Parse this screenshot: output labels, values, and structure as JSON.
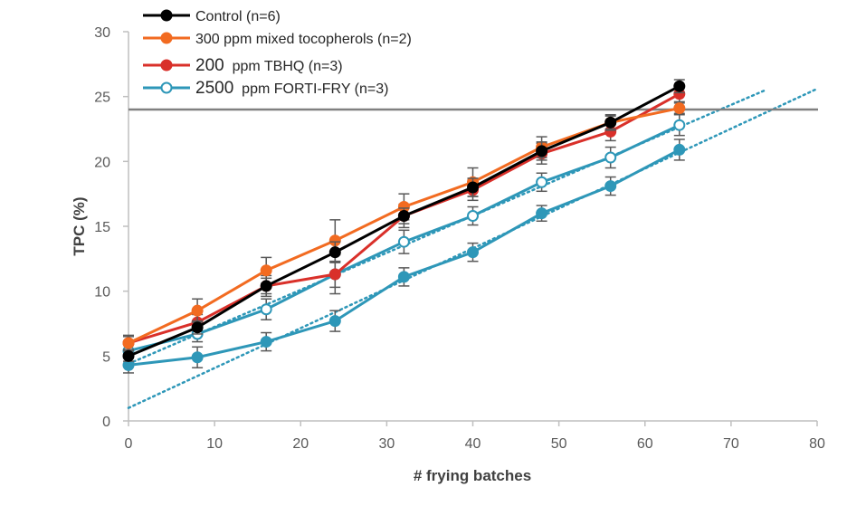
{
  "chart_data": {
    "type": "line",
    "title": "",
    "xlabel": "# frying batches",
    "ylabel": "TPC (%)",
    "xlim": [
      0,
      80
    ],
    "ylim": [
      0,
      30
    ],
    "xticks": [
      "0",
      "10",
      "20",
      "30",
      "40",
      "50",
      "60",
      "70",
      "80"
    ],
    "yticks": [
      "0",
      "5",
      "10",
      "15",
      "20",
      "25",
      "30"
    ],
    "grid": false,
    "legend_placement": "top-left",
    "reference_line": {
      "y": 24,
      "color": "#808080"
    },
    "x": [
      0,
      8,
      16,
      24,
      32,
      40,
      48,
      56,
      64
    ],
    "series": [
      {
        "name": "Control (n=6)",
        "name_parts": [
          "",
          "Control (n=6)"
        ],
        "color": "#000000",
        "marker": "filled",
        "values": [
          5.0,
          7.2,
          10.4,
          13.0,
          15.8,
          18.0,
          20.8,
          23.0,
          25.8
        ],
        "errors": [
          0.4,
          0.5,
          0.6,
          0.8,
          0.6,
          0.7,
          0.7,
          0.6,
          0.5
        ]
      },
      {
        "name": "300 ppm mixed tocopherols (n=2)",
        "name_parts": [
          "",
          "300 ppm mixed tocopherols (n=2)"
        ],
        "color": "#F26B21",
        "marker": "filled",
        "values": [
          6.0,
          8.5,
          11.6,
          13.9,
          16.5,
          18.4,
          21.1,
          23.0,
          24.1
        ],
        "errors": [
          0.6,
          0.9,
          1.0,
          1.6,
          1.0,
          1.1,
          0.8,
          0.5,
          0.4
        ]
      },
      {
        "name": "200  ppm TBHQ (n=3)",
        "name_parts": [
          "200",
          "  ppm TBHQ (n=3)"
        ],
        "color": "#D9302A",
        "marker": "filled",
        "values": [
          6.0,
          7.6,
          10.4,
          11.3,
          15.8,
          17.8,
          20.6,
          22.3,
          25.2
        ],
        "errors": [
          0.5,
          0.6,
          0.8,
          1.0,
          0.9,
          0.8,
          0.8,
          0.7,
          0.6
        ]
      },
      {
        "name": "2500  ppm FORTI-FRY (n=3)",
        "name_parts": [
          "2500",
          "  ppm FORTI-FRY (n=3)"
        ],
        "color": "#2E97B8",
        "marker": "open",
        "values": [
          5.4,
          6.7,
          8.6,
          11.3,
          13.8,
          15.8,
          18.4,
          20.3,
          22.8
        ],
        "errors": [
          0.5,
          0.6,
          0.8,
          1.5,
          0.9,
          0.7,
          0.7,
          0.8,
          0.8
        ]
      },
      {
        "name": "",
        "color": "#2E97B8",
        "marker": "filled",
        "values": [
          4.3,
          4.9,
          6.1,
          7.7,
          11.1,
          13.0,
          16.0,
          18.1,
          20.9
        ],
        "errors": [
          0.6,
          0.8,
          0.7,
          0.8,
          0.7,
          0.7,
          0.6,
          0.7,
          0.8
        ]
      }
    ],
    "trendlines": [
      {
        "color": "#2E97B8",
        "style": "dotted",
        "from": [
          0,
          4.4
        ],
        "to": [
          74,
          25.5
        ]
      },
      {
        "color": "#2E97B8",
        "style": "dotted",
        "from": [
          0,
          1.0
        ],
        "to": [
          80,
          25.6
        ]
      }
    ]
  }
}
